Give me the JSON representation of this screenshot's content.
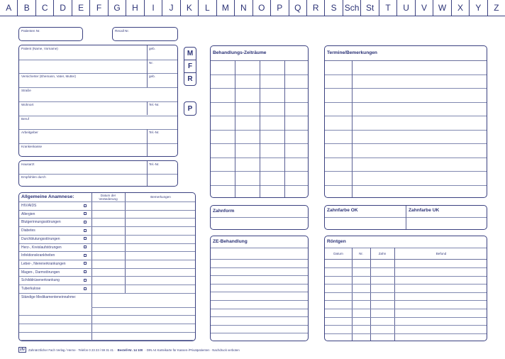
{
  "index_tabs": [
    "A",
    "B",
    "C",
    "D",
    "E",
    "F",
    "G",
    "H",
    "I",
    "J",
    "K",
    "L",
    "M",
    "N",
    "O",
    "P",
    "Q",
    "R",
    "S",
    "Sch",
    "St",
    "T",
    "U",
    "V",
    "W",
    "X",
    "Y",
    "Z"
  ],
  "patient_nr_label": "Patienten Nr.",
  "recall_nr_label": "Recall Nr.",
  "patient_rows": [
    {
      "left": "Patient (Name, Vorname)",
      "right": "geb."
    },
    {
      "left": "",
      "right": "Nr."
    },
    {
      "left": "Versicherter (Ehemann, Vater, Mutter)",
      "right": "geb."
    },
    {
      "left": "Straße",
      "right": null
    },
    {
      "left": "Wohnort",
      "right": "Tel.-Nr."
    },
    {
      "left": "Beruf",
      "right": null
    },
    {
      "left": "Arbeitgeber",
      "right": "Tel.-Nr."
    },
    {
      "left": "Krankenkasse",
      "right": ""
    }
  ],
  "doctor_rows": [
    {
      "left": "Hausarzt",
      "right": "Tel.-Nr."
    },
    {
      "left": "Empfohlen durch",
      "right": ""
    }
  ],
  "mfr_buttons": [
    "M",
    "F",
    "R"
  ],
  "p_button": "P",
  "anamnese": {
    "title": "Allgemeine Anamnese:",
    "col_date": "Datum der Veränderung",
    "col_notes": "Bemerkungen",
    "items": [
      "HIV/AIDS",
      "Allergien",
      "Blutgerinnungsstörungen",
      "Diabetes",
      "Durchblutungsstörungen",
      "Herz-, Kreislaufstörungen",
      "Infektionskrankheiten",
      "Leber-, Nierenerkrankungen",
      "Magen-, Darmstörungen",
      "Schilddrüsenerkrankung",
      "Tuberkulose"
    ],
    "medication_label": "Ständige Medikamenteneinnahme:"
  },
  "behandlungs_zeitraeume": {
    "title": "Behandlungs-Zeiträume"
  },
  "termine": {
    "title": "Termine/Bemerkungen"
  },
  "zahnform": {
    "title": "Zahnform"
  },
  "zahnfarbe_ok": {
    "title": "Zahnfarbe OK"
  },
  "zahnfarbe_uk": {
    "title": "Zahnfarbe UK"
  },
  "ze_behandlung": {
    "title": "ZE-Behandlung"
  },
  "roentgen": {
    "title": "Röntgen",
    "columns": [
      "Datum",
      "Nr.",
      "Zahn",
      "Befund"
    ]
  },
  "footer": {
    "logo": "zfv",
    "publisher": "Zahnärztlicher Fach Verlag / Herne · Telefon 0 23 23 / 59 31 41 ·",
    "order_no": "Bestell-Nr. 14 100",
    "description": "· DIN A4 Karteikarte für Kassen-/Privatpatienten · Nachdruck verboten"
  },
  "colors": {
    "ink": "#2b3276",
    "line": "#8088b0"
  }
}
